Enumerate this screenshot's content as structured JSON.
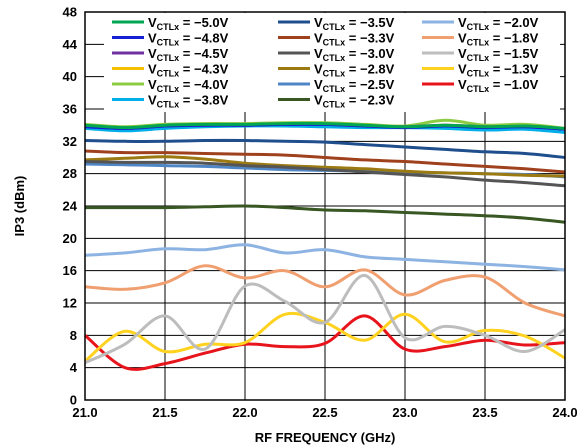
{
  "chart_data": {
    "type": "line",
    "xlabel": "RF FREQUENCY (GHz)",
    "ylabel": "IP3 (dBm)",
    "xlim": [
      21.0,
      24.0
    ],
    "ylim": [
      0,
      48
    ],
    "xticks": [
      21.0,
      21.5,
      22.0,
      22.5,
      23.0,
      23.5,
      24.0
    ],
    "xtick_labels": [
      "21.0",
      "21.5",
      "22.0",
      "22.5",
      "23.0",
      "23.5",
      "24.0"
    ],
    "yticks": [
      0,
      4,
      8,
      12,
      16,
      20,
      24,
      28,
      32,
      36,
      40,
      44,
      48
    ],
    "ytick_labels": [
      "0",
      "4",
      "8",
      "12",
      "16",
      "20",
      "24",
      "28",
      "32",
      "36",
      "40",
      "44",
      "48"
    ],
    "grid": true,
    "legend": {
      "position": "top",
      "columns": 3,
      "prefix": "V",
      "subscript": "CTLx"
    },
    "x": [
      21.0,
      21.25,
      21.5,
      21.75,
      22.0,
      22.25,
      22.5,
      22.75,
      23.0,
      23.25,
      23.5,
      23.75,
      24.0
    ],
    "series": [
      {
        "name": " = −5.0V",
        "color": "#00a651",
        "values": [
          34.0,
          33.7,
          34.0,
          34.1,
          34.1,
          34.2,
          34.2,
          34.0,
          33.8,
          34.0,
          33.8,
          33.9,
          33.6
        ]
      },
      {
        "name": " = −4.8V",
        "color": "#1420d2",
        "values": [
          33.8,
          33.6,
          33.9,
          34.0,
          34.0,
          34.1,
          34.1,
          33.9,
          33.7,
          33.9,
          33.7,
          33.8,
          33.5
        ]
      },
      {
        "name": " = −4.5V",
        "color": "#7030a0",
        "values": [
          33.9,
          33.6,
          33.9,
          34.0,
          34.0,
          34.1,
          34.1,
          33.9,
          33.8,
          34.0,
          33.8,
          33.8,
          33.5
        ]
      },
      {
        "name": " = −4.3V",
        "color": "#f5c000",
        "values": [
          34.0,
          33.7,
          34.0,
          34.1,
          34.1,
          34.2,
          34.2,
          34.0,
          33.8,
          34.0,
          33.8,
          33.9,
          33.6
        ]
      },
      {
        "name": " = −4.0V",
        "color": "#8ccc44",
        "values": [
          34.1,
          33.8,
          34.1,
          34.2,
          34.2,
          34.3,
          34.3,
          34.1,
          33.9,
          34.6,
          34.0,
          34.1,
          33.6
        ]
      },
      {
        "name": " = −3.8V",
        "color": "#00aee8",
        "values": [
          33.6,
          33.3,
          33.6,
          33.8,
          33.9,
          33.9,
          33.8,
          33.7,
          33.7,
          33.6,
          33.4,
          33.5,
          33.1
        ]
      },
      {
        "name": " = −3.5V",
        "color": "#1f4e8c",
        "values": [
          32.1,
          32.0,
          32.0,
          32.1,
          32.1,
          32.0,
          31.9,
          31.6,
          31.3,
          31.0,
          30.7,
          30.5,
          30.0
        ]
      },
      {
        "name": " = −3.3V",
        "color": "#a0411e",
        "values": [
          30.8,
          30.6,
          30.6,
          30.5,
          30.4,
          30.3,
          30.0,
          29.7,
          29.5,
          29.2,
          28.9,
          28.6,
          28.2
        ]
      },
      {
        "name": " = −3.0V",
        "color": "#555555",
        "values": [
          29.5,
          29.4,
          29.4,
          29.3,
          29.0,
          28.8,
          28.5,
          28.2,
          27.9,
          27.6,
          27.2,
          26.9,
          26.5
        ]
      },
      {
        "name": " = −2.8V",
        "color": "#9c7a12",
        "values": [
          29.7,
          29.9,
          30.1,
          29.8,
          29.3,
          29.0,
          28.8,
          28.6,
          28.3,
          28.1,
          28.0,
          27.8,
          27.7
        ]
      },
      {
        "name": " = −2.5V",
        "color": "#4f86c6",
        "values": [
          29.2,
          29.1,
          29.0,
          28.9,
          28.7,
          28.5,
          28.4,
          28.3,
          28.2,
          28.1,
          28.0,
          27.9,
          27.6
        ]
      },
      {
        "name": " = −2.3V",
        "color": "#385723",
        "values": [
          23.8,
          23.8,
          23.8,
          23.9,
          24.0,
          23.8,
          23.5,
          23.4,
          23.2,
          23.0,
          22.8,
          22.5,
          22.0
        ]
      },
      {
        "name": " = −2.0V",
        "color": "#8db3e2",
        "values": [
          17.9,
          18.2,
          18.7,
          18.6,
          19.2,
          18.2,
          18.6,
          17.7,
          17.4,
          17.1,
          16.8,
          16.5,
          16.1
        ]
      },
      {
        "name": " = −1.8V",
        "color": "#f0a070",
        "values": [
          14.0,
          13.7,
          14.5,
          16.6,
          15.1,
          16.0,
          14.0,
          16.1,
          13.0,
          14.8,
          15.2,
          12.0,
          10.4
        ]
      },
      {
        "name": " = −1.5V",
        "color": "#bdbdbd",
        "values": [
          4.6,
          6.9,
          10.4,
          6.3,
          14.1,
          12.2,
          9.6,
          15.4,
          7.7,
          9.1,
          8.0,
          6.0,
          8.7
        ]
      },
      {
        "name": " = −1.3V",
        "color": "#ffd21f",
        "values": [
          4.8,
          8.5,
          6.0,
          6.9,
          7.1,
          10.6,
          9.6,
          7.4,
          10.6,
          7.2,
          8.6,
          7.9,
          5.2
        ]
      },
      {
        "name": " = −1.0V",
        "color": "#e8141c",
        "values": [
          8.0,
          4.0,
          4.5,
          5.8,
          6.9,
          6.6,
          7.0,
          10.4,
          6.3,
          6.6,
          7.4,
          6.8,
          7.1
        ]
      }
    ]
  }
}
